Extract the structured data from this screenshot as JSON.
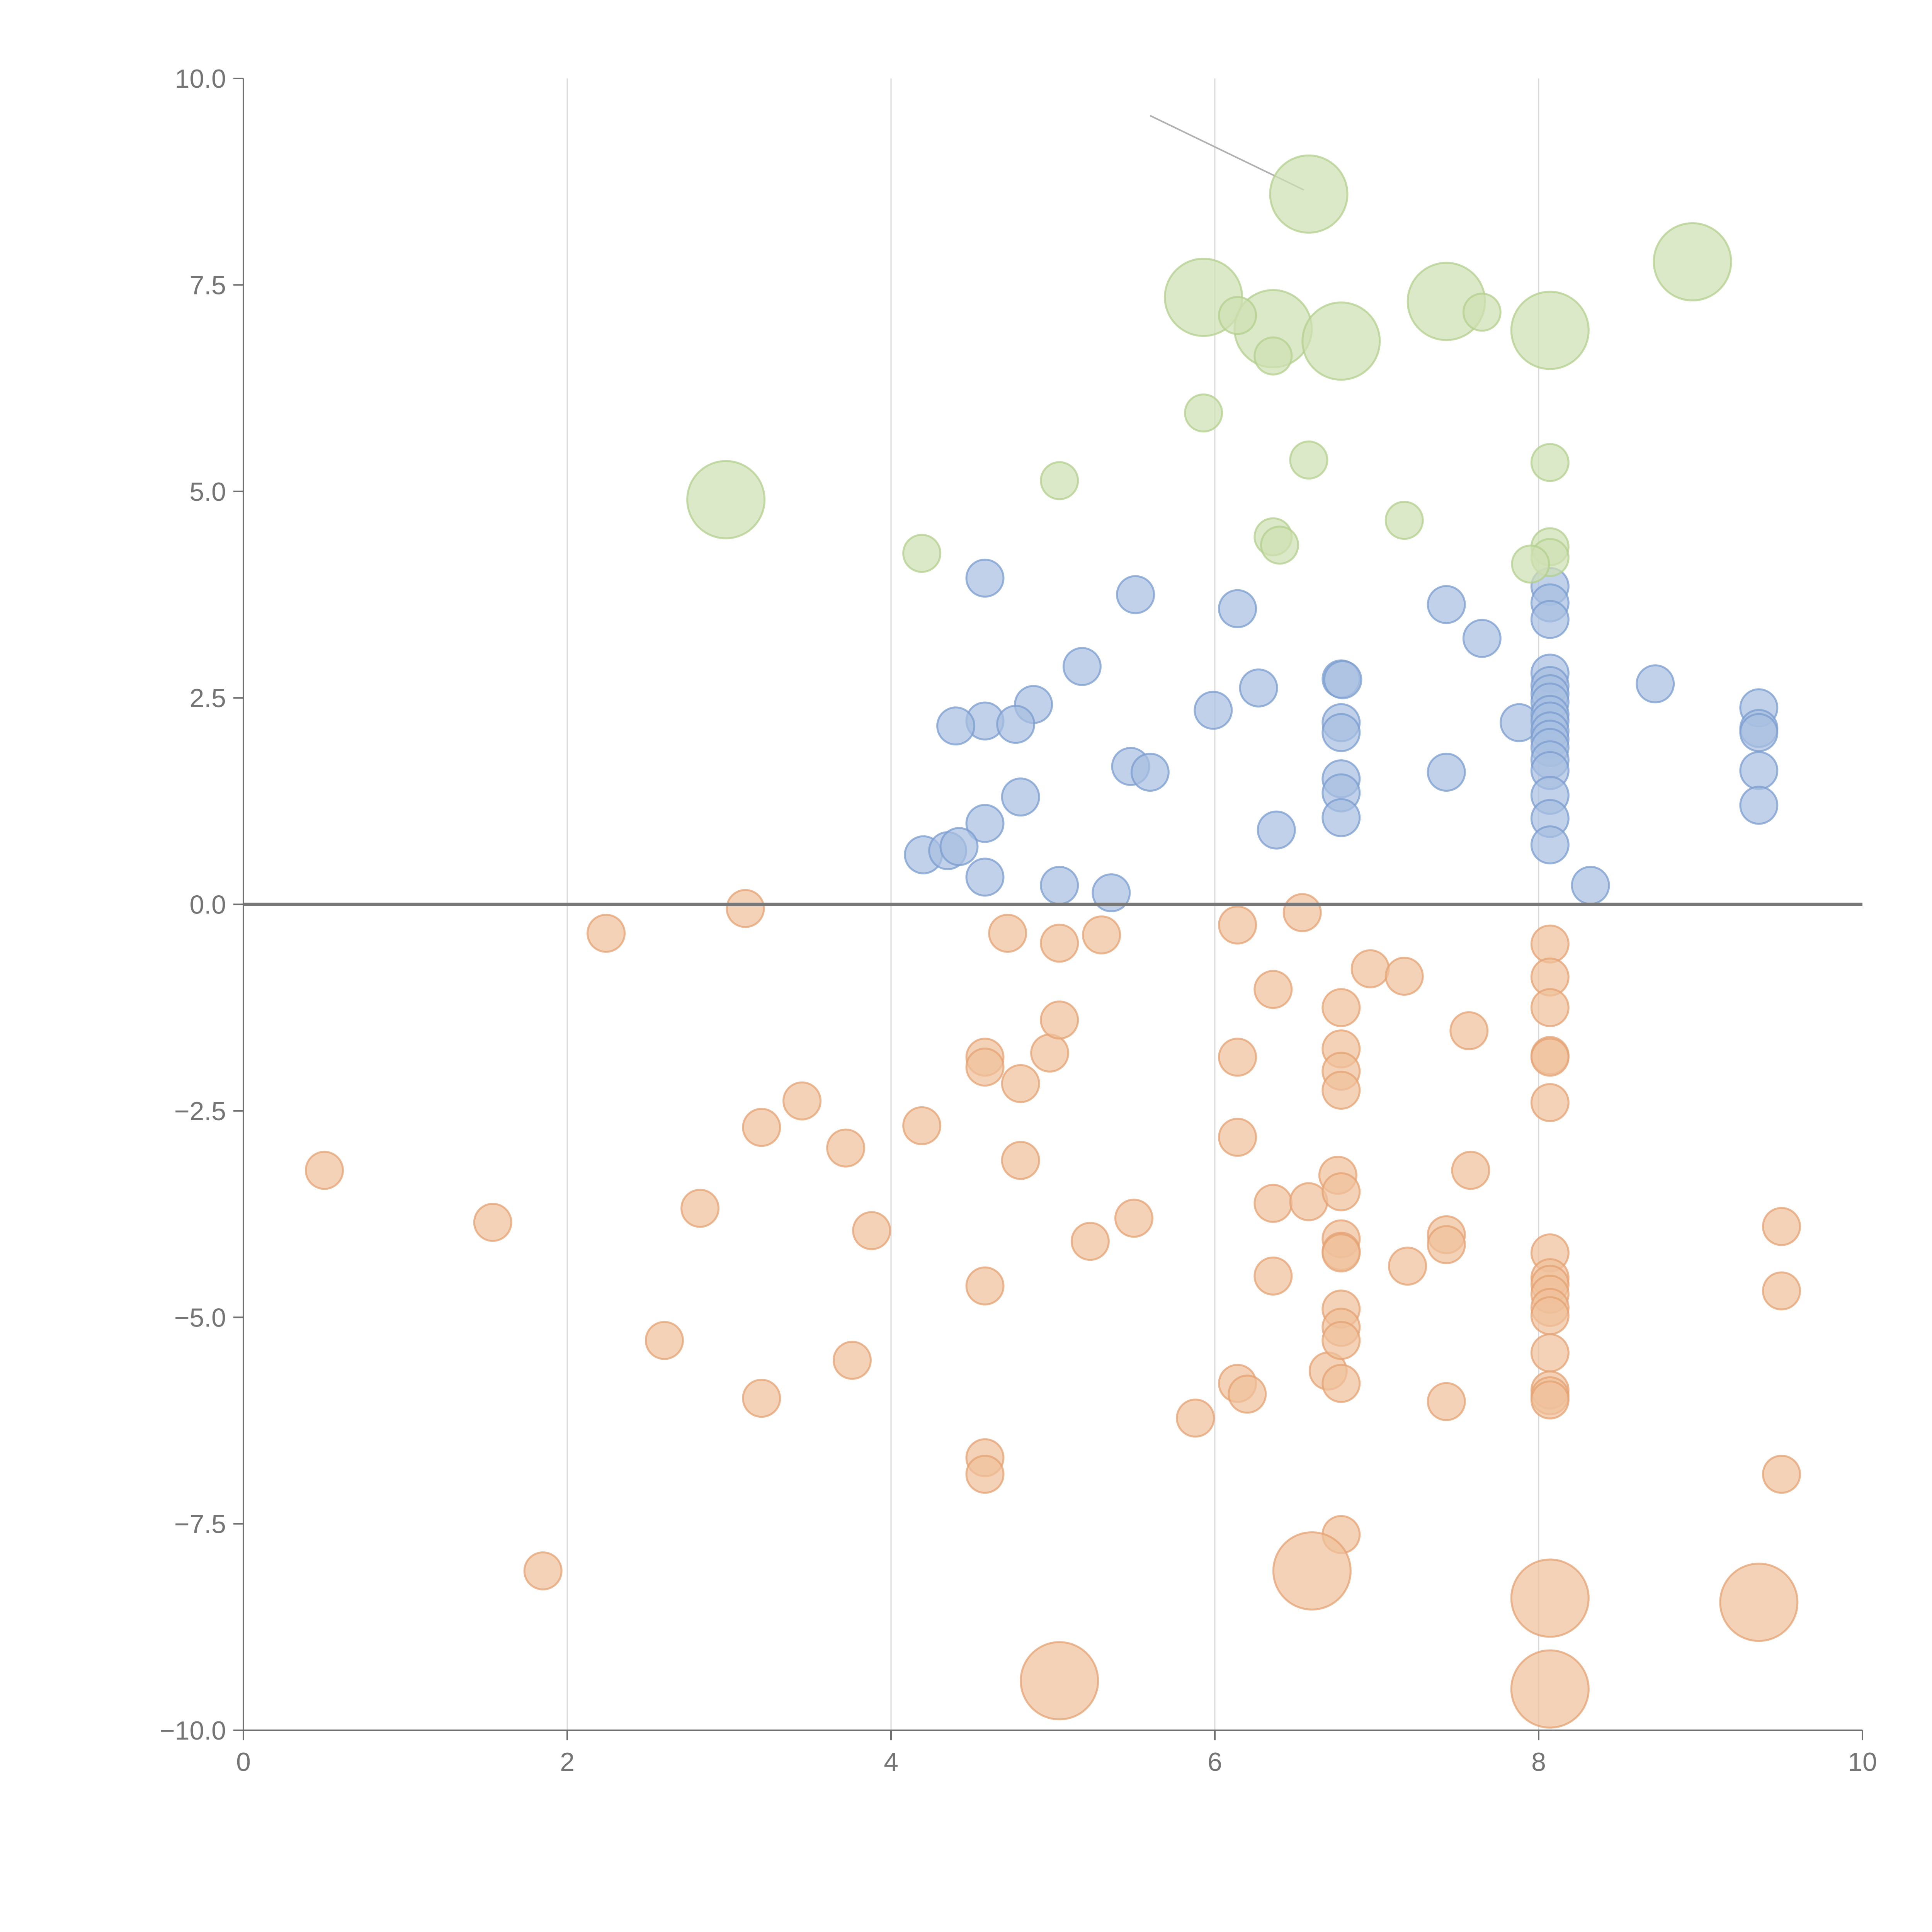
{
  "chart_data": {
    "type": "scatter",
    "title": "",
    "xlabel": "",
    "ylabel": "",
    "xlim": [
      0,
      10
    ],
    "ylim": [
      -10,
      10
    ],
    "x_ticks": [
      "0",
      "2",
      "4",
      "6",
      "8",
      "10"
    ],
    "x_tick_values": [
      0,
      2,
      4,
      6,
      8,
      10
    ],
    "y_ticks": [
      "10.0",
      "7.5",
      "5.0",
      "2.5",
      "0.0",
      "−2.5",
      "−5.0",
      "−7.5",
      "−10.0"
    ],
    "y_tick_values": [
      10,
      7.5,
      5,
      2.5,
      0,
      -2.5,
      -5,
      -7.5,
      -10
    ],
    "vertical_gridlines_at": [
      2,
      4,
      6,
      8
    ],
    "horizontal_reference_line": 0,
    "legend": "none",
    "series": [
      {
        "color": "#a8bfe0",
        "stroke": "#7b9ccf",
        "points": [
          [
            4.58,
            3.95
          ],
          [
            5.51,
            3.75
          ],
          [
            6.14,
            3.58
          ],
          [
            7.43,
            3.63
          ],
          [
            7.65,
            3.22
          ],
          [
            5.18,
            2.88
          ],
          [
            4.88,
            2.42
          ],
          [
            4.58,
            2.22
          ],
          [
            4.77,
            2.18
          ],
          [
            4.4,
            2.16
          ],
          [
            5.99,
            2.35
          ],
          [
            6.27,
            2.62
          ],
          [
            6.78,
            2.73
          ],
          [
            6.79,
            2.72
          ],
          [
            6.78,
            2.2
          ],
          [
            6.78,
            2.08
          ],
          [
            8.72,
            2.67
          ],
          [
            7.88,
            2.2
          ],
          [
            9.36,
            2.38
          ],
          [
            9.36,
            2.13
          ],
          [
            9.36,
            2.08
          ],
          [
            5.48,
            1.67
          ],
          [
            5.6,
            1.6
          ],
          [
            4.8,
            1.3
          ],
          [
            4.58,
            0.98
          ],
          [
            6.78,
            1.52
          ],
          [
            6.78,
            1.35
          ],
          [
            6.78,
            1.05
          ],
          [
            6.38,
            0.9
          ],
          [
            7.43,
            1.6
          ],
          [
            4.2,
            0.6
          ],
          [
            4.35,
            0.65
          ],
          [
            4.42,
            0.7
          ],
          [
            4.58,
            0.33
          ],
          [
            5.04,
            0.23
          ],
          [
            5.36,
            0.14
          ],
          [
            8.32,
            0.23
          ],
          [
            9.36,
            1.62
          ],
          [
            9.36,
            1.2
          ],
          [
            8.07,
            3.85
          ],
          [
            8.07,
            3.65
          ],
          [
            8.07,
            3.45
          ],
          [
            8.07,
            2.8
          ],
          [
            8.07,
            2.65
          ],
          [
            8.07,
            2.55
          ],
          [
            8.07,
            2.45
          ],
          [
            8.07,
            2.3
          ],
          [
            8.07,
            2.22
          ],
          [
            8.07,
            2.1
          ],
          [
            8.07,
            2.0
          ],
          [
            8.07,
            1.9
          ],
          [
            8.07,
            1.75
          ],
          [
            8.07,
            1.62
          ],
          [
            8.07,
            1.32
          ],
          [
            8.07,
            1.04
          ],
          [
            8.07,
            0.72
          ]
        ],
        "sizes": []
      },
      {
        "color": "#f0c09b",
        "stroke": "#e4a173",
        "points": [
          [
            0.5,
            -3.22
          ],
          [
            1.54,
            -3.85
          ],
          [
            1.85,
            -8.07
          ],
          [
            2.24,
            -0.35
          ],
          [
            2.6,
            -5.28
          ],
          [
            2.82,
            -3.68
          ],
          [
            3.1,
            -0.05
          ],
          [
            3.2,
            -2.7
          ],
          [
            3.2,
            -5.98
          ],
          [
            3.45,
            -2.38
          ],
          [
            3.72,
            -2.95
          ],
          [
            3.76,
            -5.52
          ],
          [
            3.88,
            -3.95
          ],
          [
            4.19,
            -2.68
          ],
          [
            4.58,
            -1.85
          ],
          [
            4.58,
            -1.97
          ],
          [
            4.58,
            -4.62
          ],
          [
            4.58,
            -6.7
          ],
          [
            4.58,
            -6.9
          ],
          [
            4.72,
            -0.35
          ],
          [
            4.8,
            -2.17
          ],
          [
            4.8,
            -3.1
          ],
          [
            4.98,
            -1.8
          ],
          [
            5.04,
            -0.47
          ],
          [
            5.04,
            -1.4
          ],
          [
            5.23,
            -4.08
          ],
          [
            5.3,
            -0.37
          ],
          [
            5.5,
            -3.8
          ],
          [
            5.88,
            -6.22
          ],
          [
            6.14,
            -0.25
          ],
          [
            6.14,
            -1.85
          ],
          [
            6.14,
            -2.82
          ],
          [
            6.14,
            -5.8
          ],
          [
            6.2,
            -5.93
          ],
          [
            6.36,
            -1.03
          ],
          [
            6.36,
            -3.62
          ],
          [
            6.36,
            -4.5
          ],
          [
            6.54,
            -0.1
          ],
          [
            6.58,
            -3.6
          ],
          [
            6.7,
            -5.65
          ],
          [
            6.76,
            -3.28
          ],
          [
            6.78,
            -1.25
          ],
          [
            6.78,
            -1.75
          ],
          [
            6.78,
            -2.02
          ],
          [
            6.78,
            -2.25
          ],
          [
            6.78,
            -3.48
          ],
          [
            6.78,
            -4.05
          ],
          [
            6.78,
            -4.2
          ],
          [
            6.78,
            -4.22
          ],
          [
            6.78,
            -4.9
          ],
          [
            6.78,
            -5.12
          ],
          [
            6.78,
            -5.28
          ],
          [
            6.78,
            -5.8
          ],
          [
            6.78,
            -7.63
          ],
          [
            6.96,
            -0.78
          ],
          [
            7.17,
            -0.87
          ],
          [
            7.19,
            -4.38
          ],
          [
            7.43,
            -4.0
          ],
          [
            7.43,
            -4.12
          ],
          [
            7.43,
            -6.02
          ],
          [
            7.57,
            -1.53
          ],
          [
            7.58,
            -3.22
          ],
          [
            8.07,
            -0.48
          ],
          [
            8.07,
            -0.88
          ],
          [
            8.07,
            -1.25
          ],
          [
            8.07,
            -1.83
          ],
          [
            8.07,
            -1.85
          ],
          [
            8.07,
            -2.4
          ],
          [
            8.07,
            -4.22
          ],
          [
            8.07,
            -4.52
          ],
          [
            8.07,
            -4.6
          ],
          [
            8.07,
            -4.72
          ],
          [
            8.07,
            -4.88
          ],
          [
            8.07,
            -4.98
          ],
          [
            8.07,
            -5.43
          ],
          [
            8.07,
            -5.88
          ],
          [
            8.07,
            -5.95
          ],
          [
            8.07,
            -6.0
          ],
          [
            9.5,
            -3.9
          ],
          [
            9.5,
            -4.68
          ],
          [
            9.5,
            -6.9
          ],
          [
            6.6,
            -8.07
          ],
          [
            8.07,
            -8.4
          ],
          [
            9.36,
            -8.45
          ],
          [
            5.04,
            -9.4
          ],
          [
            8.07,
            -9.5
          ]
        ],
        "sizes": [
          1,
          1,
          1,
          1,
          1,
          1,
          1,
          1,
          1,
          1,
          1,
          1,
          1,
          1,
          1,
          1,
          1,
          1,
          1,
          1,
          1,
          1,
          1,
          1,
          1,
          1,
          1,
          1,
          1,
          1,
          1,
          1,
          1,
          1,
          1,
          1,
          1,
          1,
          1,
          1,
          1,
          1,
          1,
          1,
          1,
          1,
          1,
          1,
          1,
          1,
          1,
          1,
          1,
          1,
          1,
          1,
          1,
          1,
          1,
          1,
          1,
          1,
          1,
          1,
          1,
          1,
          1,
          1,
          1,
          1,
          1,
          1,
          1,
          1,
          1,
          1,
          1,
          1,
          1,
          1,
          1,
          2,
          2,
          2,
          2,
          2
        ]
      },
      {
        "color": "#cfe1b3",
        "stroke": "#b3cf8d",
        "points": [
          [
            6.58,
            8.6
          ],
          [
            8.95,
            7.78
          ],
          [
            5.93,
            7.35
          ],
          [
            7.43,
            7.3
          ],
          [
            6.36,
            6.97
          ],
          [
            6.78,
            6.82
          ],
          [
            8.07,
            6.95
          ],
          [
            2.98,
            4.9
          ],
          [
            6.14,
            7.13
          ],
          [
            6.36,
            6.64
          ],
          [
            7.65,
            7.17
          ],
          [
            5.93,
            5.95
          ],
          [
            6.58,
            5.38
          ],
          [
            5.04,
            5.13
          ],
          [
            7.17,
            4.65
          ],
          [
            4.19,
            4.25
          ],
          [
            6.36,
            4.45
          ],
          [
            6.4,
            4.35
          ],
          [
            8.07,
            5.35
          ],
          [
            8.07,
            4.33
          ],
          [
            8.07,
            4.2
          ],
          [
            7.95,
            4.12
          ]
        ],
        "sizes": [
          2,
          2,
          2,
          2,
          2,
          2,
          2,
          2,
          1,
          1,
          1,
          1,
          1,
          1,
          1,
          1,
          1,
          1,
          1,
          1,
          1,
          1
        ]
      }
    ],
    "annotation_lines": [
      {
        "from": [
          5.6,
          9.55
        ],
        "to": [
          6.55,
          8.65
        ]
      }
    ]
  }
}
